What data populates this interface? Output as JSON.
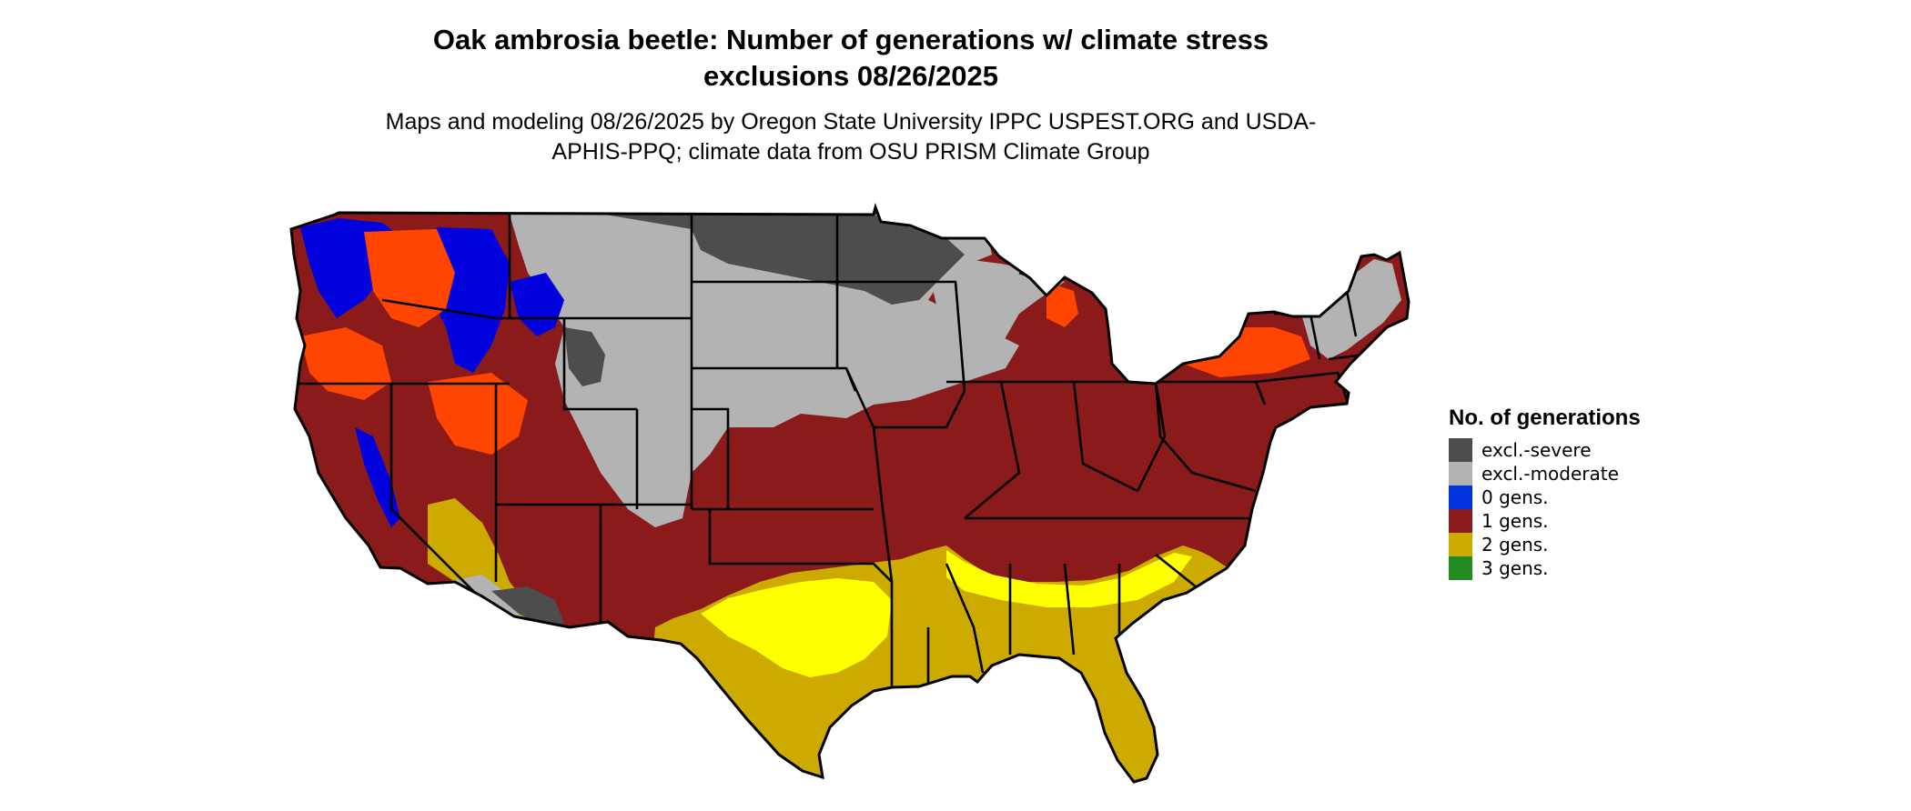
{
  "map": {
    "title": "Oak ambrosia beetle: Number of generations w/ climate stress exclusions 08/26/2025",
    "subtitle": "Maps and modeling 08/26/2025 by Oregon State University IPPC USPEST.ORG and USDA-APHIS-PPQ; climate data from OSU PRISM Climate Group",
    "region": "conterminous United States",
    "legend": {
      "title": "No. of generations",
      "items": [
        {
          "label": "excl.-severe",
          "color": "#4d4d4d"
        },
        {
          "label": "excl.-moderate",
          "color": "#b3b3b3"
        },
        {
          "label": "0 gens.",
          "color": "#0033dd"
        },
        {
          "label": "1 gens.",
          "color": "#8b1a1a"
        },
        {
          "label": "2 gens.",
          "color": "#ccaa00"
        },
        {
          "label": "3 gens.",
          "color": "#228b22"
        }
      ]
    },
    "colors": {
      "severe": "#4d4d4d",
      "moderate": "#b3b3b3",
      "zero": "#0000dd",
      "one": "#8b1a1a",
      "one_high": "#ff4500",
      "two": "#ccaa00",
      "two_high": "#ffff00",
      "border": "#000000"
    }
  }
}
